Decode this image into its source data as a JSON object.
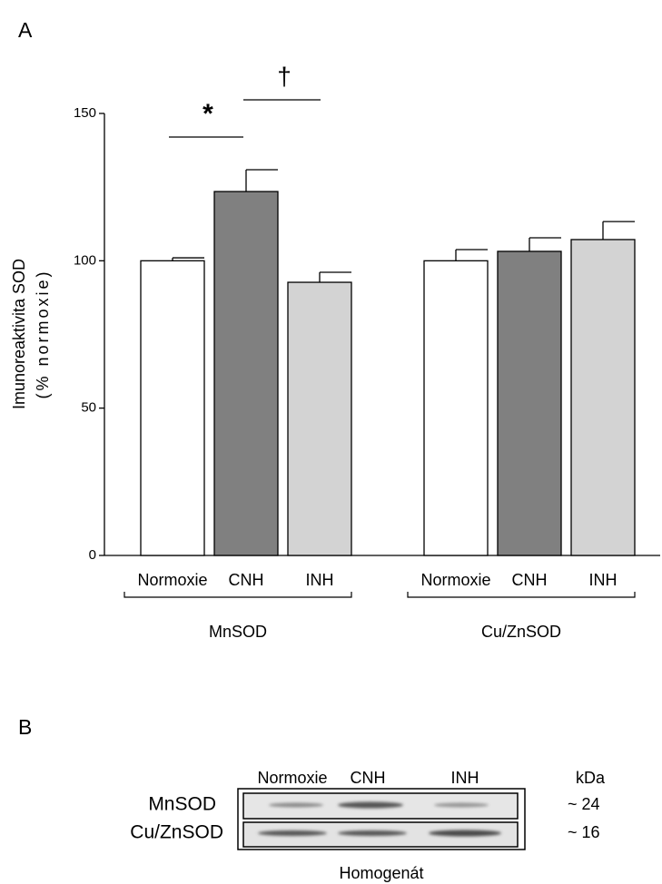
{
  "panels": [
    "A",
    "B"
  ],
  "chart_data": {
    "type": "bar",
    "ylabel": [
      "Imunoreaktivita SOD",
      "(% normoxie)"
    ],
    "categories": [
      "MnSOD",
      "Cu/ZnSOD"
    ],
    "series": [
      {
        "name": "Normoxie",
        "color": "#ffffff",
        "values": [
          100,
          100
        ],
        "errors": [
          1,
          3.8
        ]
      },
      {
        "name": "CNH",
        "color": "#808080",
        "values": [
          123.5,
          103.2
        ],
        "errors": [
          7.4,
          4.6
        ]
      },
      {
        "name": "INH",
        "color": "#d3d3d3",
        "values": [
          92.7,
          107.2
        ],
        "errors": [
          3.4,
          6.1
        ]
      }
    ],
    "ylim": [
      0,
      150
    ],
    "yticks": [
      0,
      50,
      100,
      150
    ],
    "annotations": [
      "*",
      "†"
    ]
  },
  "blot": {
    "columns": [
      "Normoxie",
      "CNH",
      "INH"
    ],
    "unit": "kDa",
    "rows": [
      {
        "label": "MnSOD",
        "size": "~ 24"
      },
      {
        "label": "Cu/ZnSOD",
        "size": "~ 16"
      }
    ],
    "caption": "Homogenát"
  }
}
